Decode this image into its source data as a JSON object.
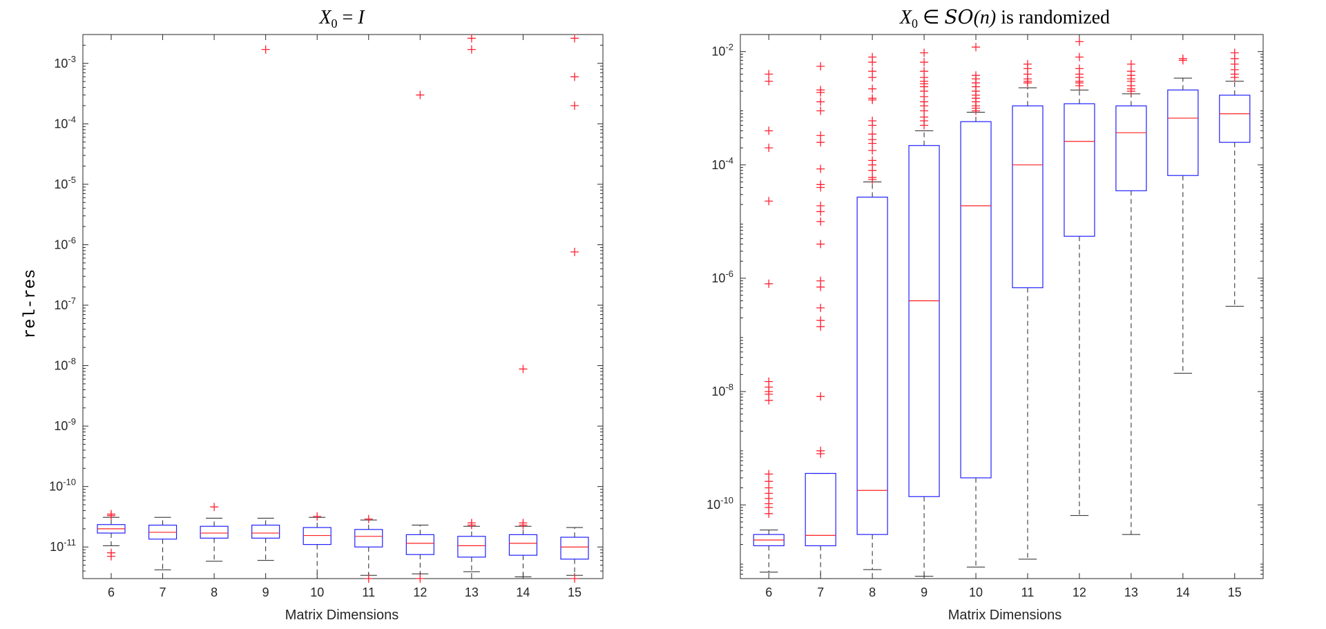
{
  "chart_data": [
    {
      "type": "boxplot",
      "title_parts": [
        "X",
        "0",
        " = ",
        "I"
      ],
      "xlabel": "Matrix Dimensions",
      "ylabel": "rel-res",
      "yscale": "log",
      "ylim": [
        3e-12,
        0.003
      ],
      "ytick_bases": [
        "10",
        "10",
        "10",
        "10",
        "10",
        "10",
        "10",
        "10",
        "10"
      ],
      "ytick_exponents": [
        "-11",
        "-10",
        "-9",
        "-8",
        "-7",
        "-6",
        "-5",
        "-4",
        "-3"
      ],
      "categories": [
        "6",
        "7",
        "8",
        "9",
        "10",
        "11",
        "12",
        "13",
        "14",
        "15"
      ],
      "boxes": [
        {
          "lw": 1.05e-11,
          "q1": 1.7e-11,
          "med": 2e-11,
          "q3": 2.35e-11,
          "uw": 3.1e-11,
          "outliers": [
            3.5e-11,
            3.3e-11,
            8e-12,
            7e-12
          ]
        },
        {
          "lw": 4.2e-12,
          "q1": 1.35e-11,
          "med": 1.75e-11,
          "q3": 2.3e-11,
          "uw": 3.1e-11,
          "outliers": []
        },
        {
          "lw": 5.8e-12,
          "q1": 1.4e-11,
          "med": 1.7e-11,
          "q3": 2.2e-11,
          "uw": 3e-11,
          "outliers": [
            4.6e-11
          ]
        },
        {
          "lw": 6e-12,
          "q1": 1.4e-11,
          "med": 1.7e-11,
          "q3": 2.3e-11,
          "uw": 3e-11,
          "outliers": [
            0.0017
          ]
        },
        {
          "lw": 3e-12,
          "q1": 1.1e-11,
          "med": 1.55e-11,
          "q3": 2.1e-11,
          "uw": 3.1e-11,
          "outliers": [
            3.2e-11
          ]
        },
        {
          "lw": 3.4e-12,
          "q1": 1e-11,
          "med": 1.5e-11,
          "q3": 1.95e-11,
          "uw": 2.8e-11,
          "outliers": [
            2.9e-11,
            3e-12
          ]
        },
        {
          "lw": 3.6e-12,
          "q1": 7.5e-12,
          "med": 1.15e-11,
          "q3": 1.6e-11,
          "uw": 2.3e-11,
          "outliers": [
            0.0003,
            3e-12
          ]
        },
        {
          "lw": 3.9e-12,
          "q1": 6.8e-12,
          "med": 1.05e-11,
          "q3": 1.5e-11,
          "uw": 2.2e-11,
          "outliers": [
            0.0017,
            0.0026,
            2.5e-11,
            2.3e-11
          ]
        },
        {
          "lw": 3.2e-12,
          "q1": 7.3e-12,
          "med": 1.15e-11,
          "q3": 1.6e-11,
          "uw": 2.2e-11,
          "outliers": [
            8.8e-09,
            2.5e-11,
            2.3e-11
          ]
        },
        {
          "lw": 3.4e-12,
          "q1": 6.3e-12,
          "med": 1e-11,
          "q3": 1.45e-11,
          "uw": 2.1e-11,
          "outliers": [
            0.0026,
            0.0006,
            0.0002,
            7.6e-07,
            3e-12
          ]
        }
      ]
    },
    {
      "type": "boxplot",
      "title_parts": [
        "X",
        "0",
        " ∈ ",
        "SO",
        "(n)",
        " is randomized"
      ],
      "xlabel": "Matrix Dimensions",
      "ylabel": "",
      "yscale": "log",
      "ylim": [
        5e-12,
        0.02
      ],
      "ytick_bases": [
        "10",
        "10",
        "10",
        "10",
        "10"
      ],
      "ytick_exponents": [
        "-10",
        "-8",
        "-6",
        "-4",
        "-2"
      ],
      "categories": [
        "6",
        "7",
        "8",
        "9",
        "10",
        "11",
        "12",
        "13",
        "14",
        "15"
      ],
      "boxes": [
        {
          "lw": 6.5e-12,
          "q1": 1.9e-11,
          "med": 2.4e-11,
          "q3": 3e-11,
          "uw": 3.6e-11,
          "outliers": [
            0.004,
            0.003,
            0.0004,
            0.0002,
            2.3e-05,
            8e-07,
            1.5e-08,
            1.2e-08,
            1e-08,
            9e-09,
            7e-09,
            3.5e-10,
            2.6e-10,
            2e-10,
            1.6e-10,
            1.3e-10,
            1.05e-10,
            9e-11,
            7e-11
          ]
        },
        {
          "lw": 5e-12,
          "q1": 1.9e-11,
          "med": 2.9e-11,
          "q3": 3.6e-10,
          "uw": 3.6e-10,
          "outliers": [
            0.0055,
            0.0021,
            0.0019,
            0.0013,
            0.0009,
            0.00033,
            0.00025,
            8.5e-05,
            4.5e-05,
            4e-05,
            1.9e-05,
            1.5e-05,
            1e-05,
            4e-06,
            9e-07,
            7e-07,
            3e-07,
            1.8e-07,
            1.4e-07,
            8.2e-09,
            9e-10,
            8e-10
          ]
        },
        {
          "lw": 7.2e-12,
          "q1": 3e-11,
          "med": 1.8e-10,
          "q3": 2.7e-05,
          "uw": 5e-05,
          "outliers": [
            0.008,
            0.0065,
            0.0045,
            0.0035,
            0.0022,
            0.0015,
            0.0014,
            0.0006,
            0.0005,
            0.00035,
            0.00028,
            0.00024,
            0.00018,
            0.00012,
            0.0001,
            8e-05,
            6e-05,
            5.5e-05
          ]
        },
        {
          "lw": 5.5e-12,
          "q1": 1.4e-10,
          "med": 4e-07,
          "q3": 0.00022,
          "uw": 0.0004,
          "outliers": [
            0.0095,
            0.0065,
            0.0045,
            0.0035,
            0.003,
            0.0027,
            0.0024,
            0.002,
            0.0016,
            0.0013,
            0.0011,
            0.0009,
            0.0007,
            0.0006,
            0.0005
          ]
        },
        {
          "lw": 8e-12,
          "q1": 3e-10,
          "med": 1.9e-05,
          "q3": 0.00058,
          "uw": 0.00085,
          "outliers": [
            0.012,
            0.0038,
            0.0033,
            0.0028,
            0.0024,
            0.002,
            0.0017,
            0.0015,
            0.0013,
            0.0011,
            0.001,
            0.0009
          ]
        },
        {
          "lw": 1.1e-11,
          "q1": 6.8e-07,
          "med": 0.0001,
          "q3": 0.0011,
          "uw": 0.0023,
          "outliers": [
            0.006,
            0.005,
            0.004,
            0.0033,
            0.003,
            0.0028
          ]
        },
        {
          "lw": 6.5e-11,
          "q1": 5.5e-06,
          "med": 0.00026,
          "q3": 0.0012,
          "uw": 0.0021,
          "outliers": [
            0.015,
            0.008,
            0.005,
            0.004,
            0.0035,
            0.003,
            0.0028,
            0.0025
          ]
        },
        {
          "lw": 3e-11,
          "q1": 3.5e-05,
          "med": 0.00037,
          "q3": 0.0011,
          "uw": 0.0018,
          "outliers": [
            0.006,
            0.0045,
            0.0038,
            0.0033,
            0.003,
            0.0025,
            0.0022,
            0.002
          ]
        },
        {
          "lw": 2.1e-08,
          "q1": 6.5e-05,
          "med": 0.00067,
          "q3": 0.0021,
          "uw": 0.0034,
          "outliers": [
            0.0075,
            0.007
          ]
        },
        {
          "lw": 3.2e-07,
          "q1": 0.00025,
          "med": 0.0008,
          "q3": 0.0017,
          "uw": 0.003,
          "outliers": [
            0.0095,
            0.0075,
            0.006,
            0.0048,
            0.004,
            0.0035
          ]
        }
      ]
    }
  ]
}
